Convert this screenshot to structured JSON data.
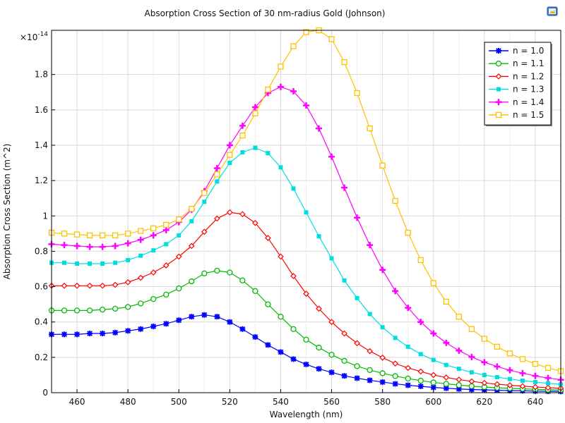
{
  "chart_data": {
    "type": "line",
    "title": "Absorption Cross Section of 30 nm-radius Gold (Johnson)",
    "xlabel": "Wavelength (nm)",
    "ylabel": "Absorption Cross Section (m^2)",
    "y_multiplier_label": "×10",
    "y_multiplier_exponent": "-14",
    "xlim": [
      450,
      650
    ],
    "ylim": [
      0,
      2.05
    ],
    "xticks": [
      460,
      480,
      500,
      520,
      540,
      560,
      580,
      600,
      620,
      640
    ],
    "yticks": [
      0,
      0.2,
      0.4,
      0.6,
      0.8,
      1,
      1.2,
      1.4,
      1.6,
      1.8
    ],
    "grid": true,
    "legend_position": "top-right",
    "x": [
      450,
      455,
      460,
      465,
      470,
      475,
      480,
      485,
      490,
      495,
      500,
      505,
      510,
      515,
      520,
      525,
      530,
      535,
      540,
      545,
      550,
      555,
      560,
      565,
      570,
      575,
      580,
      585,
      590,
      595,
      600,
      605,
      610,
      615,
      620,
      625,
      630,
      635,
      640,
      645,
      650
    ],
    "series": [
      {
        "name": "n = 1.0",
        "color": "#0000ff",
        "marker": "asterisk",
        "values": [
          0.33,
          0.33,
          0.33,
          0.335,
          0.335,
          0.34,
          0.35,
          0.36,
          0.375,
          0.39,
          0.41,
          0.43,
          0.44,
          0.43,
          0.4,
          0.36,
          0.315,
          0.27,
          0.23,
          0.19,
          0.16,
          0.135,
          0.115,
          0.095,
          0.082,
          0.07,
          0.06,
          0.05,
          0.042,
          0.036,
          0.03,
          0.025,
          0.021,
          0.018,
          0.016,
          0.014,
          0.012,
          0.011,
          0.009,
          0.008,
          0.007
        ]
      },
      {
        "name": "n = 1.1",
        "color": "#00bb00",
        "marker": "circle",
        "values": [
          0.465,
          0.465,
          0.465,
          0.465,
          0.47,
          0.475,
          0.485,
          0.505,
          0.53,
          0.555,
          0.59,
          0.63,
          0.675,
          0.69,
          0.68,
          0.635,
          0.575,
          0.5,
          0.43,
          0.36,
          0.3,
          0.255,
          0.215,
          0.18,
          0.15,
          0.128,
          0.11,
          0.094,
          0.08,
          0.068,
          0.058,
          0.05,
          0.043,
          0.037,
          0.032,
          0.028,
          0.025,
          0.022,
          0.019,
          0.017,
          0.015
        ]
      },
      {
        "name": "n = 1.2",
        "color": "#ff0000",
        "marker": "diamond",
        "values": [
          0.605,
          0.605,
          0.605,
          0.605,
          0.605,
          0.61,
          0.625,
          0.65,
          0.68,
          0.72,
          0.77,
          0.83,
          0.91,
          0.985,
          1.02,
          1.01,
          0.96,
          0.875,
          0.77,
          0.66,
          0.56,
          0.475,
          0.4,
          0.335,
          0.28,
          0.235,
          0.198,
          0.165,
          0.14,
          0.12,
          0.1,
          0.086,
          0.074,
          0.064,
          0.055,
          0.048,
          0.042,
          0.037,
          0.032,
          0.028,
          0.025
        ]
      },
      {
        "name": "n = 1.3",
        "color": "#00dddd",
        "marker": "square",
        "values": [
          0.735,
          0.735,
          0.73,
          0.73,
          0.73,
          0.735,
          0.75,
          0.775,
          0.805,
          0.84,
          0.89,
          0.97,
          1.08,
          1.195,
          1.3,
          1.36,
          1.385,
          1.355,
          1.275,
          1.155,
          1.02,
          0.885,
          0.76,
          0.635,
          0.535,
          0.445,
          0.37,
          0.31,
          0.26,
          0.218,
          0.185,
          0.157,
          0.135,
          0.115,
          0.1,
          0.088,
          0.077,
          0.068,
          0.06,
          0.053,
          0.047
        ]
      },
      {
        "name": "n = 1.4",
        "color": "#ff00ff",
        "marker": "plus",
        "values": [
          0.84,
          0.835,
          0.83,
          0.825,
          0.825,
          0.83,
          0.845,
          0.865,
          0.89,
          0.92,
          0.965,
          1.035,
          1.14,
          1.27,
          1.4,
          1.51,
          1.615,
          1.695,
          1.73,
          1.705,
          1.625,
          1.495,
          1.335,
          1.16,
          0.99,
          0.835,
          0.695,
          0.575,
          0.48,
          0.4,
          0.335,
          0.282,
          0.238,
          0.202,
          0.172,
          0.148,
          0.127,
          0.11,
          0.095,
          0.083,
          0.073
        ]
      },
      {
        "name": "n = 1.5",
        "color": "#ffc000",
        "marker": "square-open",
        "values": [
          0.905,
          0.9,
          0.895,
          0.89,
          0.89,
          0.89,
          0.9,
          0.915,
          0.93,
          0.95,
          0.98,
          1.04,
          1.13,
          1.235,
          1.345,
          1.455,
          1.58,
          1.715,
          1.845,
          1.96,
          2.04,
          2.05,
          2.0,
          1.87,
          1.695,
          1.495,
          1.285,
          1.085,
          0.905,
          0.75,
          0.62,
          0.515,
          0.43,
          0.36,
          0.305,
          0.26,
          0.222,
          0.19,
          0.163,
          0.14,
          0.122
        ]
      }
    ]
  }
}
